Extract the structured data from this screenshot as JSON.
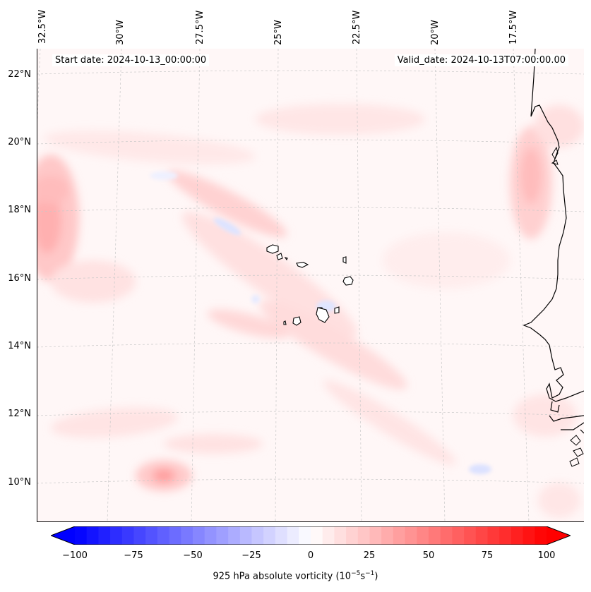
{
  "header": {
    "start_date": "Start date: 2024-10-13_00:00:00",
    "valid_date": "Valid_date: 2024-10-13T07:00:00.00"
  },
  "longitude_labels": [
    "32.5°W",
    "30°W",
    "27.5°W",
    "25°W",
    "22.5°W",
    "20°W",
    "17.5°W"
  ],
  "latitude_labels": [
    "22°N",
    "20°N",
    "18°N",
    "16°N",
    "14°N",
    "12°N",
    "10°N"
  ],
  "colorbar": {
    "ticks": [
      "−100",
      "−75",
      "−50",
      "−25",
      "0",
      "25",
      "50",
      "75",
      "100"
    ],
    "label_prefix": "925 hPa absolute vorticity (10",
    "label_exp1": "−5",
    "label_mid": "s",
    "label_exp2": "−1",
    "label_suffix": ")",
    "min": -100,
    "max": 100,
    "colors": {
      "negative": "#0000ff",
      "zero": "#ffffff",
      "positive": "#ff0000"
    }
  },
  "colors": {
    "coastline": "#000000",
    "grid": "#c8c8c8",
    "background": "#fff8f8"
  }
}
